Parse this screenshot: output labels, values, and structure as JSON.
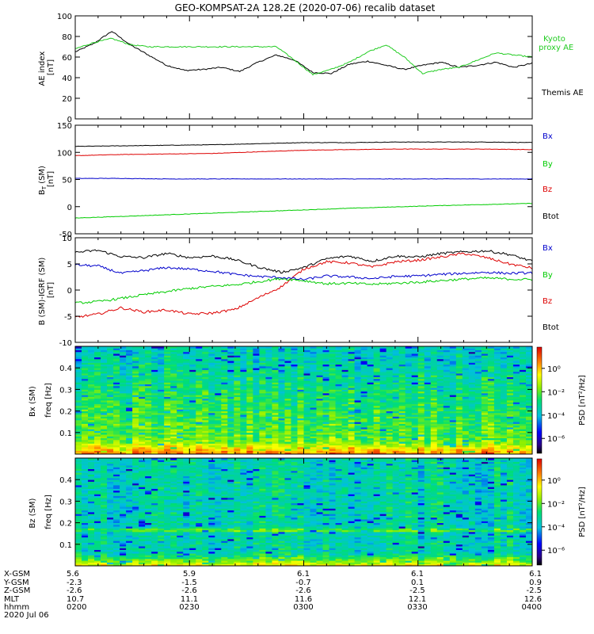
{
  "title": "GEO-KOMPSAT-2A 128.2E (2020-07-06) recalib dataset",
  "colors": {
    "black": "#000000",
    "red": "#dd0000",
    "blue": "#0000cc",
    "green": "#00cc00",
    "kyoto": "#22cc22"
  },
  "chart_data": [
    {
      "id": "ae",
      "type": "line",
      "ylabel_1": "AE index",
      "ylabel_2": "[nT]",
      "ylim": [
        0,
        100
      ],
      "yticks": [
        "0",
        "20",
        "40",
        "60",
        "80",
        "100"
      ],
      "x": [
        0,
        0.04,
        0.08,
        0.12,
        0.16,
        0.2,
        0.24,
        0.28,
        0.32,
        0.36,
        0.4,
        0.44,
        0.48,
        0.52,
        0.56,
        0.6,
        0.64,
        0.68,
        0.72,
        0.76,
        0.8,
        0.84,
        0.88,
        0.92,
        0.96,
        1.0
      ],
      "series": [
        {
          "name": "Themis AE",
          "color": "#000000",
          "values": [
            65,
            73,
            85,
            72,
            62,
            52,
            47,
            48,
            50,
            46,
            55,
            62,
            57,
            45,
            44,
            53,
            56,
            52,
            48,
            52,
            55,
            50,
            52,
            55,
            50,
            54
          ]
        },
        {
          "name": "Kyoto proxy AE",
          "color": "#22cc22",
          "values": [
            68,
            74,
            78,
            72,
            70,
            70,
            70,
            70,
            70,
            70,
            70,
            70,
            57,
            43,
            48,
            55,
            65,
            72,
            60,
            44,
            48,
            50,
            57,
            64,
            62,
            60
          ]
        }
      ],
      "legend": [
        "Kyoto",
        "proxy AE",
        "Themis AE"
      ]
    },
    {
      "id": "b",
      "type": "line",
      "ylabel_1": "B",
      "ylabel_sub": "T",
      "ylabel_1b": " (SM)",
      "ylabel_2": "[nT]",
      "ylim": [
        -50,
        150
      ],
      "yticks": [
        "-50",
        "0",
        "50",
        "100",
        "150"
      ],
      "x": [
        0,
        0.1,
        0.2,
        0.3,
        0.4,
        0.5,
        0.6,
        0.7,
        0.8,
        0.9,
        1.0
      ],
      "series": [
        {
          "name": "Btot",
          "color": "#000000",
          "values": [
            111,
            112,
            113,
            114,
            116,
            118,
            118,
            119,
            119,
            119,
            118
          ]
        },
        {
          "name": "Bz",
          "color": "#dd0000",
          "values": [
            94,
            96,
            97,
            98,
            101,
            104,
            105,
            106,
            106,
            106,
            105
          ]
        },
        {
          "name": "Bx",
          "color": "#0000cc",
          "values": [
            52,
            52,
            51,
            51,
            51,
            51,
            51,
            51,
            51,
            51,
            51
          ]
        },
        {
          "name": "By",
          "color": "#00cc00",
          "values": [
            -21,
            -18,
            -15,
            -12,
            -9,
            -6,
            -3,
            -0.5,
            2,
            4,
            6
          ]
        }
      ],
      "legend": [
        "Bx",
        "By",
        "Bz",
        "Btot"
      ]
    },
    {
      "id": "bdiff",
      "type": "line",
      "ylabel_1": "B (SM)-IGRF (SM)",
      "ylabel_2": "[nT]",
      "ylim": [
        -10,
        10
      ],
      "yticks": [
        "-10",
        "-5",
        "0",
        "5",
        "10"
      ],
      "x": [
        0,
        0.05,
        0.1,
        0.15,
        0.2,
        0.25,
        0.3,
        0.35,
        0.4,
        0.45,
        0.5,
        0.55,
        0.6,
        0.65,
        0.7,
        0.75,
        0.8,
        0.85,
        0.9,
        0.95,
        1.0
      ],
      "series": [
        {
          "name": "Btot",
          "color": "#000000",
          "values": [
            7.2,
            7.6,
            6.4,
            6.2,
            7.0,
            6.2,
            6.5,
            5.8,
            4.4,
            3.4,
            4.3,
            6.0,
            6.5,
            5.5,
            6.5,
            6.3,
            7.0,
            7.3,
            7.5,
            6.8,
            5.5
          ]
        },
        {
          "name": "Bz",
          "color": "#dd0000",
          "values": [
            -5.2,
            -4.6,
            -3.4,
            -4.2,
            -3.8,
            -4.6,
            -4.4,
            -3.7,
            -1.5,
            0.6,
            4.0,
            5.4,
            5.2,
            4.4,
            5.4,
            5.7,
            6.3,
            7.0,
            6.2,
            5.0,
            4.2
          ]
        },
        {
          "name": "Bx",
          "color": "#0000cc",
          "values": [
            4.8,
            4.6,
            3.2,
            3.7,
            4.3,
            4.0,
            3.6,
            3.0,
            2.6,
            2.4,
            2.0,
            2.7,
            2.5,
            2.2,
            2.6,
            2.7,
            3.0,
            3.2,
            3.4,
            3.2,
            3.3
          ]
        },
        {
          "name": "By",
          "color": "#00cc00",
          "values": [
            -2.5,
            -2.2,
            -1.6,
            -0.9,
            -0.3,
            0.3,
            0.7,
            1.0,
            1.6,
            2.2,
            1.8,
            1.2,
            1.3,
            1.1,
            1.3,
            1.5,
            1.8,
            2.1,
            2.3,
            2.1,
            2.0
          ]
        }
      ],
      "legend": [
        "Bx",
        "By",
        "Bz",
        "Btot"
      ]
    },
    {
      "id": "specx",
      "type": "heatmap",
      "ylabel_1": "Bx (SM)",
      "ylabel_2": "freq [Hz]",
      "ylim": [
        0,
        0.5
      ],
      "yticks": [
        "0.1",
        "0.2",
        "0.3",
        "0.4"
      ],
      "cbar_label": "PSD [nT²/Hz]",
      "cbar_ticks": [
        "10⁰",
        "10⁻²",
        "10⁻⁴",
        "10⁻⁶"
      ]
    },
    {
      "id": "specz",
      "type": "heatmap",
      "ylabel_1": "Bz (SM)",
      "ylabel_2": "freq [Hz]",
      "ylim": [
        0,
        0.5
      ],
      "yticks": [
        "0.1",
        "0.2",
        "0.3",
        "0.4"
      ],
      "cbar_label": "PSD [nT²/Hz]",
      "cbar_ticks": [
        "10⁰",
        "10⁻²",
        "10⁻⁴",
        "10⁻⁶"
      ]
    }
  ],
  "ephemeris": {
    "row_labels": [
      "X-GSM",
      "Y-GSM",
      "Z-GSM",
      "MLT",
      "hhmm",
      "2020 Jul 06"
    ],
    "columns": [
      [
        "5.6",
        "-2.3",
        "-2.6",
        "10.7",
        "0200"
      ],
      [
        "5.9",
        "-1.5",
        "-2.6",
        "11.1",
        "0230"
      ],
      [
        "6.1",
        "-0.7",
        "-2.6",
        "11.6",
        "0300"
      ],
      [
        "6.1",
        "0.1",
        "-2.5",
        "12.1",
        "0330"
      ],
      [
        "6.1",
        "0.9",
        "-2.5",
        "12.6",
        "0400"
      ]
    ]
  }
}
